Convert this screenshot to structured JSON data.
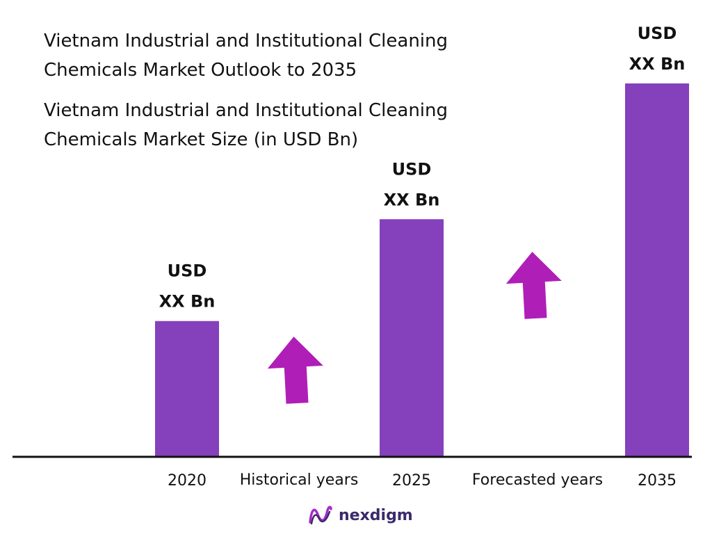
{
  "title": "Vietnam Industrial and Institutional Cleaning Chemicals Market Outlook to 2035",
  "subtitle": "Vietnam Industrial and Institutional Cleaning Chemicals Market Size (in USD Bn)",
  "colors": {
    "bar": "#8540bb",
    "arrow": "#b01eb8",
    "axis": "#111111",
    "logo_icon": "#a22cc9"
  },
  "chart_data": {
    "type": "bar",
    "categories": [
      "2020",
      "2025",
      "2035"
    ],
    "values": [
      2,
      3.5,
      5.5
    ],
    "value_labels": [
      [
        "USD",
        "XX Bn"
      ],
      [
        "USD",
        "XX Bn"
      ],
      [
        "USD",
        "XX Bn"
      ]
    ],
    "between_labels": [
      "Historical years",
      "Forecasted years"
    ],
    "xlabel": "",
    "ylabel": "",
    "ylim": [
      0,
      5.5
    ],
    "grid": false
  },
  "logo": {
    "text": "nexdigm",
    "icon": "nexdigm-logo-icon"
  }
}
